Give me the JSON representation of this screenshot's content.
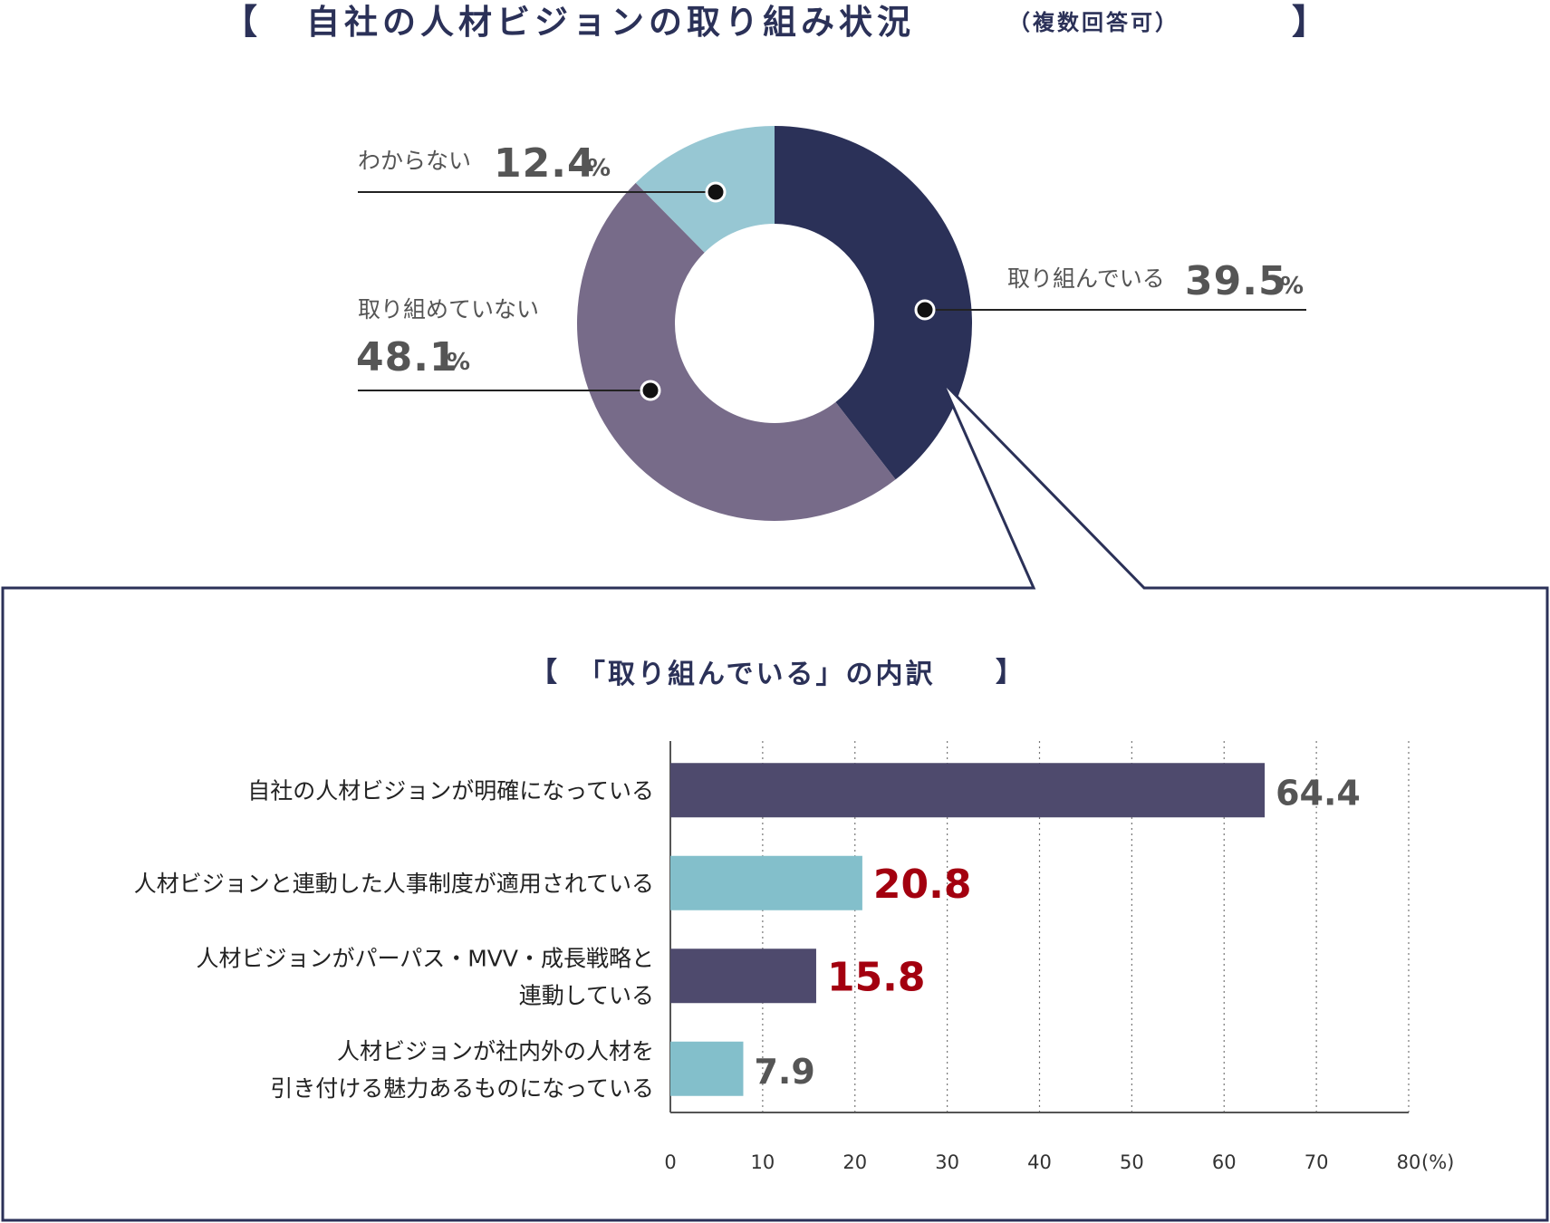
{
  "colors": {
    "title": "#2b3158",
    "donut_worked": "#2b3158",
    "donut_not": "#776b89",
    "donut_unknown": "#97c7d3",
    "bar_dark": "#4e4a6d",
    "bar_light": "#83bfcb",
    "highlight": "#a3000f",
    "label_gray": "#555555"
  },
  "chart_data": [
    {
      "type": "pie",
      "variant": "donut",
      "title_main": "自社の人材ビジョンの取り組み状況",
      "title_note": "（複数回答可）",
      "unit": "%",
      "slices": [
        {
          "label": "取り組んでいる",
          "value": 39.5,
          "color": "#2b3158"
        },
        {
          "label": "取り組めていない",
          "value": 48.1,
          "color": "#776b89"
        },
        {
          "label": "わからない",
          "value": 12.4,
          "color": "#97c7d3"
        }
      ]
    },
    {
      "type": "bar",
      "orientation": "horizontal",
      "title": "「取り組んでいる」の内訳",
      "unit": "(%)",
      "xlim": [
        0,
        80
      ],
      "ticks": [
        "0",
        "10",
        "20",
        "30",
        "40",
        "50",
        "60",
        "70",
        "80"
      ],
      "grid": true,
      "categories": [
        [
          "自社の人材ビジョンが明確になっている"
        ],
        [
          "人材ビジョンと連動した人事制度が適用されている"
        ],
        [
          "人材ビジョンがパーパス・MVV・成長戦略と",
          "連動している"
        ],
        [
          "人材ビジョンが社内外の人材を",
          "引き付ける魅力あるものになっている"
        ]
      ],
      "values": [
        64.4,
        20.8,
        15.8,
        7.9
      ],
      "value_labels": [
        "64.4",
        "20.8",
        "15.8",
        "7.9"
      ],
      "bar_colors": [
        "#4e4a6d",
        "#83bfcb",
        "#4e4a6d",
        "#83bfcb"
      ],
      "label_colors": [
        "#555555",
        "#a3000f",
        "#a3000f",
        "#555555"
      ]
    }
  ]
}
